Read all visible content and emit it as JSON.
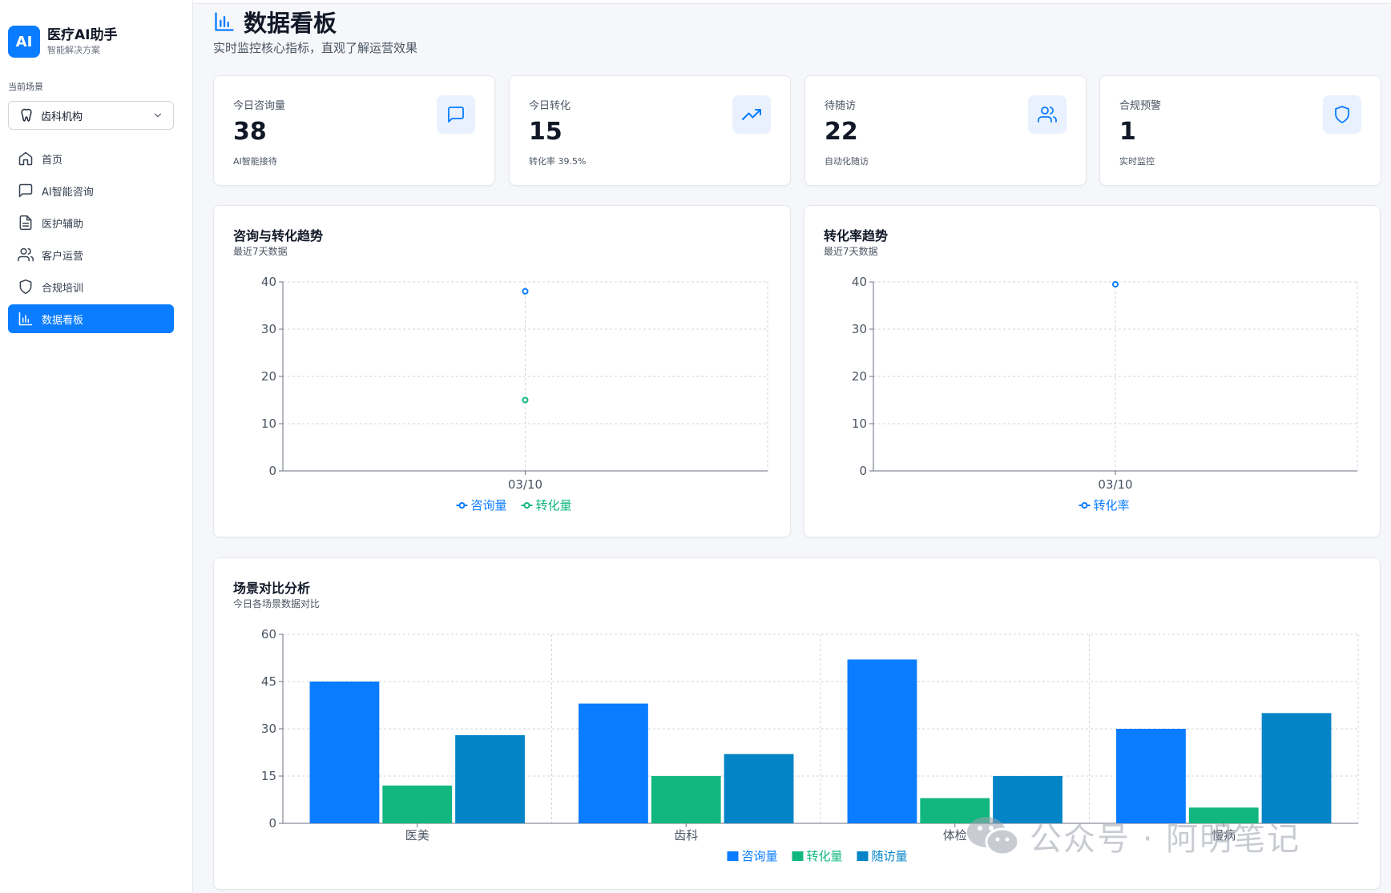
{
  "brand": {
    "logo": "AI",
    "title": "医疗AI助手",
    "subtitle": "智能解决方案"
  },
  "scene": {
    "label": "当前场景",
    "value": "齿科机构",
    "icon": "tooth-icon"
  },
  "nav": [
    {
      "label": "首页",
      "icon": "home-icon",
      "active": false
    },
    {
      "label": "AI智能咨询",
      "icon": "message-icon",
      "active": false
    },
    {
      "label": "医护辅助",
      "icon": "document-icon",
      "active": false
    },
    {
      "label": "客户运营",
      "icon": "users-icon",
      "active": false
    },
    {
      "label": "合规培训",
      "icon": "shield-icon",
      "active": false
    },
    {
      "label": "数据看板",
      "icon": "bar-chart-icon",
      "active": true
    }
  ],
  "header": {
    "title": "数据看板",
    "subtitle": "实时监控核心指标，直观了解运营效果"
  },
  "stats": [
    {
      "label": "今日咨询量",
      "value": "38",
      "sub": "AI智能接待",
      "icon": "message-icon"
    },
    {
      "label": "今日转化",
      "value": "15",
      "sub": "转化率 39.5%",
      "icon": "trending-up-icon"
    },
    {
      "label": "待随访",
      "value": "22",
      "sub": "自动化随访",
      "icon": "users-icon"
    },
    {
      "label": "合规预警",
      "value": "1",
      "sub": "实时监控",
      "icon": "shield-icon"
    }
  ],
  "charts": {
    "trend": {
      "title": "咨询与转化趋势",
      "subtitle": "最近7天数据"
    },
    "rate": {
      "title": "转化率趋势",
      "subtitle": "最近7天数据"
    },
    "scene": {
      "title": "场景对比分析",
      "subtitle": "今日各场景数据对比"
    }
  },
  "colors": {
    "accent": "#0a7cff",
    "green": "#12b77f",
    "teal": "#0284c7"
  },
  "chart_data": [
    {
      "type": "line",
      "title": "咨询与转化趋势",
      "x": [
        "03/10"
      ],
      "series": [
        {
          "name": "咨询量",
          "values": [
            38
          ]
        },
        {
          "name": "转化量",
          "values": [
            15
          ]
        }
      ],
      "ylim": [
        0,
        40
      ],
      "yticks": [
        0,
        10,
        20,
        30,
        40
      ],
      "grid": true,
      "legend": "bottom"
    },
    {
      "type": "line",
      "title": "转化率趋势",
      "x": [
        "03/10"
      ],
      "series": [
        {
          "name": "转化率",
          "values": [
            39.5
          ]
        }
      ],
      "ylim": [
        0,
        40
      ],
      "yticks": [
        0,
        10,
        20,
        30,
        40
      ],
      "grid": true,
      "legend": "bottom"
    },
    {
      "type": "bar",
      "title": "场景对比分析",
      "categories": [
        "医美",
        "齿科",
        "体检",
        "慢病"
      ],
      "series": [
        {
          "name": "咨询量",
          "values": [
            45,
            38,
            52,
            30
          ]
        },
        {
          "name": "转化量",
          "values": [
            12,
            15,
            8,
            5
          ]
        },
        {
          "name": "随访量",
          "values": [
            28,
            22,
            15,
            35
          ]
        }
      ],
      "ylim": [
        0,
        60
      ],
      "yticks": [
        0,
        15,
        30,
        45,
        60
      ],
      "grid": true,
      "legend": "bottom"
    }
  ],
  "watermark": "公众号 · 阿明笔记"
}
